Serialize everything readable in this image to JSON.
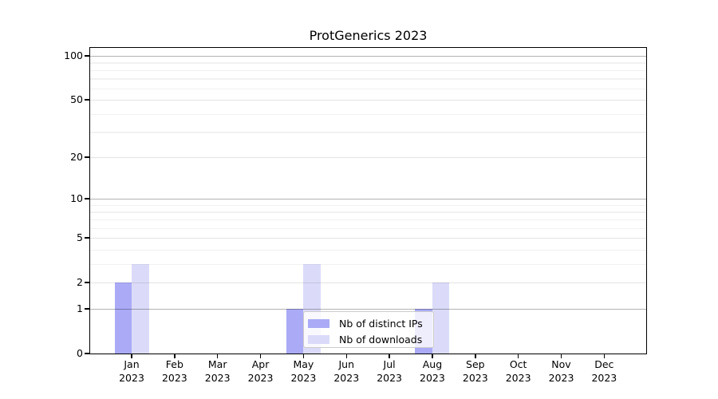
{
  "title": "ProtGenerics 2023",
  "chart_data": {
    "type": "bar",
    "title": "ProtGenerics 2023",
    "xlabel": "",
    "ylabel": "",
    "categories": [
      "Jan",
      "Feb",
      "Mar",
      "Apr",
      "May",
      "Jun",
      "Jul",
      "Aug",
      "Sep",
      "Oct",
      "Nov",
      "Dec"
    ],
    "category_year": "2023",
    "series": [
      {
        "name": "Nb of distinct IPs",
        "color": "#aaaaf6",
        "values": [
          2,
          0,
          0,
          0,
          1,
          0,
          0,
          1,
          0,
          0,
          0,
          0
        ]
      },
      {
        "name": "Nb of downloads",
        "color": "#dbdbf9",
        "values": [
          3,
          0,
          0,
          0,
          3,
          0,
          0,
          2,
          0,
          0,
          0,
          0
        ]
      }
    ],
    "yscale": "log1p",
    "ylim": [
      0,
      113
    ],
    "yticks_major": [
      0,
      1,
      2,
      5,
      10,
      20,
      50,
      100
    ],
    "yticks_emphasized": [
      1,
      10,
      100
    ],
    "yticks_minor": [
      3,
      4,
      6,
      7,
      8,
      9,
      30,
      40,
      60,
      70,
      80,
      90
    ],
    "grid": "horizontal",
    "legend": {
      "position": "lower center",
      "entries": [
        "Nb of distinct IPs",
        "Nb of downloads"
      ]
    }
  }
}
